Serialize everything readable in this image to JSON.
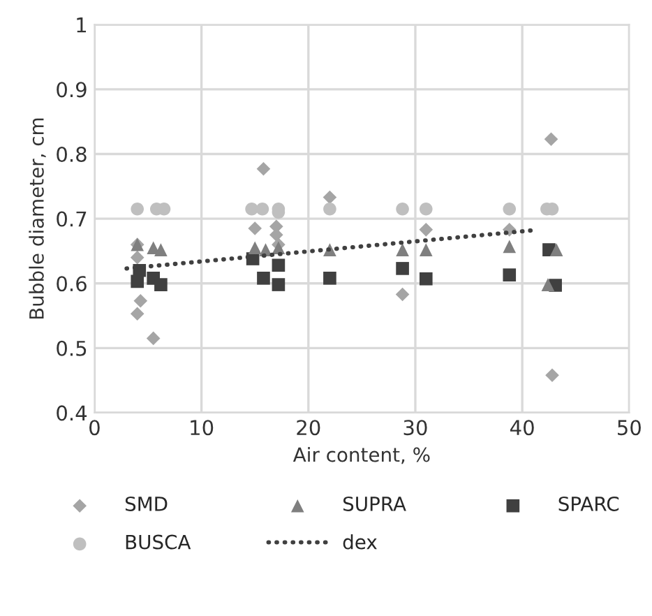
{
  "chart_data": {
    "type": "scatter",
    "xlabel": "Air content, %",
    "ylabel": "Bubble diameter, cm",
    "xlim": [
      0,
      50
    ],
    "xticks": [
      0,
      10,
      20,
      30,
      40,
      50
    ],
    "ylim": [
      0.4,
      1
    ],
    "yticks": [
      0.4,
      0.5,
      0.6,
      0.7,
      0.8,
      0.9,
      1
    ],
    "grid": true,
    "legend": "bottom",
    "series": [
      {
        "name": "SMD",
        "color": "#a5a5a5",
        "marker": "diamond",
        "x": [
          4,
          4,
          4.3,
          4,
          5.5,
          15,
          15.8,
          17,
          17,
          17.2,
          22,
          28.8,
          31,
          38.8,
          42.7,
          42.8
        ],
        "values": [
          0.66,
          0.64,
          0.573,
          0.553,
          0.515,
          0.685,
          0.777,
          0.688,
          0.675,
          0.66,
          0.733,
          0.583,
          0.683,
          0.683,
          0.823,
          0.458
        ]
      },
      {
        "name": "SUPRA",
        "color": "#7f7f7f",
        "marker": "triangle",
        "x": [
          4,
          5.5,
          6.2,
          15,
          16,
          17.2,
          22,
          28.8,
          31,
          38.8,
          43.2,
          42.4
        ],
        "values": [
          0.66,
          0.655,
          0.652,
          0.655,
          0.652,
          0.655,
          0.652,
          0.652,
          0.652,
          0.657,
          0.652,
          0.598
        ]
      },
      {
        "name": "SPARC",
        "color": "#404040",
        "marker": "square",
        "x": [
          4.2,
          4,
          5.5,
          6.2,
          14.8,
          15.8,
          17.2,
          17.2,
          22,
          28.8,
          31,
          38.8,
          42.5,
          43.1
        ],
        "values": [
          0.62,
          0.603,
          0.608,
          0.598,
          0.638,
          0.608,
          0.628,
          0.598,
          0.608,
          0.623,
          0.607,
          0.613,
          0.652,
          0.597
        ]
      },
      {
        "name": "BUSCA",
        "color": "#bfbfbf",
        "marker": "circle",
        "x": [
          4,
          5.8,
          6.5,
          14.7,
          15.7,
          17.2,
          17.2,
          22,
          28.8,
          31,
          38.8,
          42.3,
          42.8
        ],
        "values": [
          0.715,
          0.715,
          0.715,
          0.715,
          0.715,
          0.715,
          0.71,
          0.715,
          0.715,
          0.715,
          0.715,
          0.715,
          0.715
        ]
      },
      {
        "name": "dex",
        "type": "line",
        "color": "#404040",
        "line_style": "dotted",
        "marker": "none",
        "x": [
          3,
          41
        ],
        "values": [
          0.623,
          0.682
        ]
      }
    ]
  }
}
